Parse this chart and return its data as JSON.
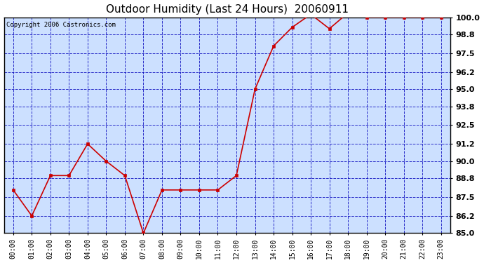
{
  "title": "Outdoor Humidity (Last 24 Hours)  20060911",
  "copyright": "Copyright 2006 Castronics.com",
  "x_labels": [
    "00:00",
    "01:00",
    "02:00",
    "03:00",
    "04:00",
    "05:00",
    "06:00",
    "07:00",
    "08:00",
    "09:00",
    "10:00",
    "11:00",
    "12:00",
    "13:00",
    "14:00",
    "15:00",
    "16:00",
    "17:00",
    "18:00",
    "19:00",
    "20:00",
    "21:00",
    "22:00",
    "23:00"
  ],
  "y_values": [
    88.0,
    86.2,
    89.0,
    89.0,
    91.2,
    90.0,
    89.0,
    85.0,
    88.0,
    88.0,
    88.0,
    88.0,
    89.0,
    95.0,
    98.0,
    99.3,
    100.2,
    99.2,
    100.3,
    100.0,
    100.0,
    100.0,
    100.0,
    100.0
  ],
  "ylim": [
    85.0,
    100.0
  ],
  "ytick_values": [
    85.0,
    86.2,
    87.5,
    88.8,
    90.0,
    91.2,
    92.5,
    93.8,
    95.0,
    96.2,
    97.5,
    98.8,
    100.0
  ],
  "ytick_labels": [
    "85.0",
    "86.2",
    "87.5",
    "88.8",
    "90.0",
    "91.2",
    "92.5",
    "93.8",
    "95.0",
    "96.2",
    "97.5",
    "98.8",
    "100.0"
  ],
  "line_color": "#cc0000",
  "marker_color": "#cc0000",
  "fig_bg_color": "#ffffff",
  "plot_bg_color": "#cce0ff",
  "grid_color": "#0000bb",
  "title_fontsize": 11,
  "axis_fontsize": 7,
  "copyright_fontsize": 6.5
}
